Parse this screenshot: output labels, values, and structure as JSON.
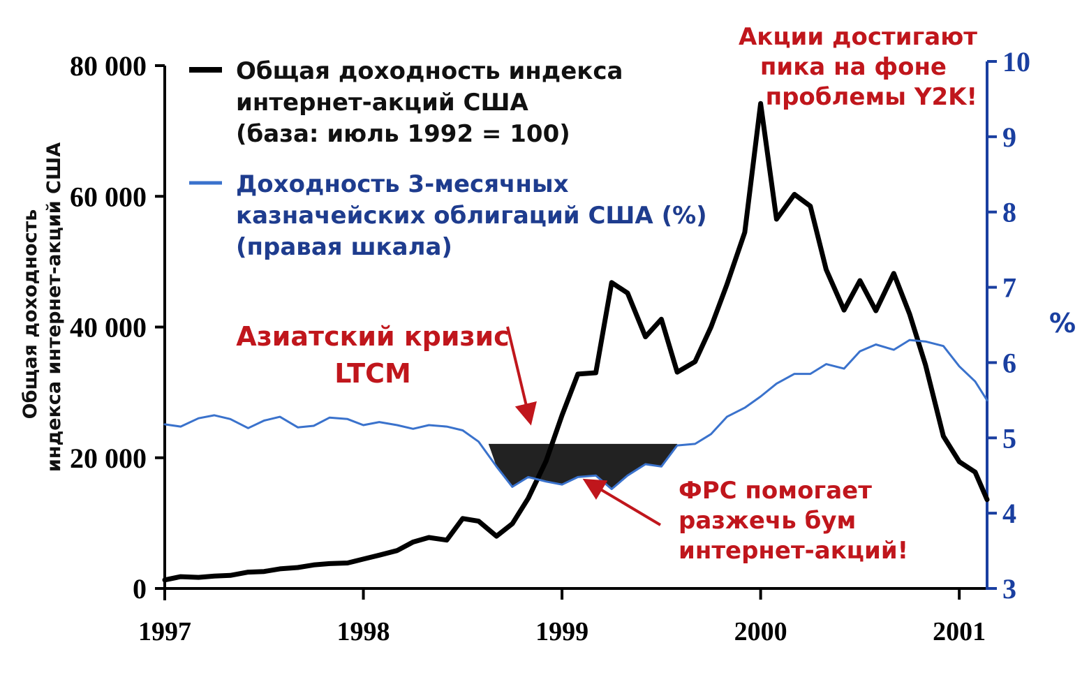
{
  "chart_data": {
    "type": "line",
    "y_left": {
      "label_lines": [
        "Общая доходность",
        "индекса интернет-акций США"
      ],
      "ticks": [
        "80 000",
        "60 000",
        "40 000",
        "20 000",
        "0"
      ],
      "tick_values": [
        80000,
        60000,
        40000,
        20000,
        0
      ],
      "range": [
        0,
        80000
      ]
    },
    "y_right": {
      "label": "%",
      "ticks": [
        "10",
        "9",
        "8",
        "7",
        "6",
        "5",
        "4",
        "3"
      ],
      "tick_values": [
        10,
        9,
        8,
        7,
        6,
        5,
        4,
        3
      ],
      "range": [
        3,
        10
      ]
    },
    "x_axis": {
      "ticks": [
        "1997",
        "1998",
        "1999",
        "2000",
        "2001"
      ],
      "tick_values": [
        1997,
        1998,
        1999,
        2000,
        2001
      ],
      "range": [
        1997,
        2001.14
      ]
    },
    "series": [
      {
        "name_lines": [
          "Общая доходность индекса",
          "интернет-акций США",
          "(база: июль 1992 = 100)"
        ],
        "axis": "left",
        "color": "#000000",
        "x": [
          1997.0,
          1997.08,
          1997.17,
          1997.25,
          1997.33,
          1997.42,
          1997.5,
          1997.58,
          1997.67,
          1997.75,
          1997.83,
          1997.92,
          1998.0,
          1998.08,
          1998.17,
          1998.25,
          1998.33,
          1998.42,
          1998.5,
          1998.58,
          1998.67,
          1998.75,
          1998.83,
          1998.92,
          1999.0,
          1999.08,
          1999.17,
          1999.25,
          1999.33,
          1999.42,
          1999.5,
          1999.58,
          1999.67,
          1999.75,
          1999.83,
          1999.92,
          2000.0,
          2000.08,
          2000.17,
          2000.25,
          2000.33,
          2000.42,
          2000.5,
          2000.58,
          2000.67,
          2000.75,
          2000.83,
          2000.92,
          2001.0,
          2001.08,
          2001.14
        ],
        "y": [
          1300,
          1800,
          1700,
          1900,
          2000,
          2500,
          2600,
          3000,
          3200,
          3600,
          3800,
          3900,
          4500,
          5100,
          5800,
          7100,
          7800,
          7400,
          10700,
          10300,
          8000,
          9900,
          13800,
          19500,
          26500,
          32800,
          33000,
          46800,
          45200,
          38500,
          41200,
          33100,
          34700,
          40000,
          46500,
          54500,
          74200,
          56500,
          60300,
          58500,
          48800,
          42600,
          47100,
          42500,
          48200,
          42000,
          34200,
          23300,
          19400,
          17800,
          13600
        ]
      },
      {
        "name_lines": [
          "Доходность 3-месячных",
          "казначейских облигаций США (%)",
          "(правая шкала)"
        ],
        "axis": "right",
        "color": "#3a72cc",
        "x": [
          1997.0,
          1997.08,
          1997.17,
          1997.25,
          1997.33,
          1997.42,
          1997.5,
          1997.58,
          1997.67,
          1997.75,
          1997.83,
          1997.92,
          1998.0,
          1998.08,
          1998.17,
          1998.25,
          1998.33,
          1998.42,
          1998.5,
          1998.58,
          1998.67,
          1998.75,
          1998.83,
          1998.92,
          1999.0,
          1999.08,
          1999.17,
          1999.25,
          1999.33,
          1999.42,
          1999.5,
          1999.58,
          1999.67,
          1999.75,
          1999.83,
          1999.92,
          2000.0,
          2000.08,
          2000.17,
          2000.25,
          2000.33,
          2000.42,
          2000.5,
          2000.58,
          2000.67,
          2000.75,
          2000.83,
          2000.92,
          2001.0,
          2001.08,
          2001.14
        ],
        "y": [
          5.18,
          5.15,
          5.26,
          5.3,
          5.25,
          5.13,
          5.23,
          5.28,
          5.14,
          5.16,
          5.27,
          5.25,
          5.17,
          5.21,
          5.17,
          5.12,
          5.17,
          5.15,
          5.1,
          4.95,
          4.62,
          4.35,
          4.48,
          4.42,
          4.38,
          4.48,
          4.5,
          4.32,
          4.5,
          4.65,
          4.62,
          4.9,
          4.92,
          5.05,
          5.28,
          5.4,
          5.55,
          5.72,
          5.85,
          5.85,
          5.98,
          5.92,
          6.15,
          6.24,
          6.17,
          6.3,
          6.28,
          6.22,
          5.95,
          5.75,
          5.5
        ]
      }
    ],
    "shaded_gap": {
      "x_from": 1998.63,
      "x_to": 1999.58,
      "level": 4.92,
      "color": "#222222"
    },
    "annotations": {
      "asia_line1": "Азиатский кризис",
      "asia_line2": "LTCM",
      "fed_line1": "ФРС помогает",
      "fed_line2": "разжечь бум",
      "fed_line3": "интернет-акций!",
      "peak_line1": "Акции достигают",
      "peak_line2": "пика на фоне",
      "peak_line3": "проблемы Y2K!",
      "color": "#c0161c"
    },
    "colors": {
      "left_axis": "#000000",
      "right_axis": "#1a3fa0",
      "annotation": "#c0161c"
    },
    "grid": false,
    "legend_position": "top-left"
  }
}
